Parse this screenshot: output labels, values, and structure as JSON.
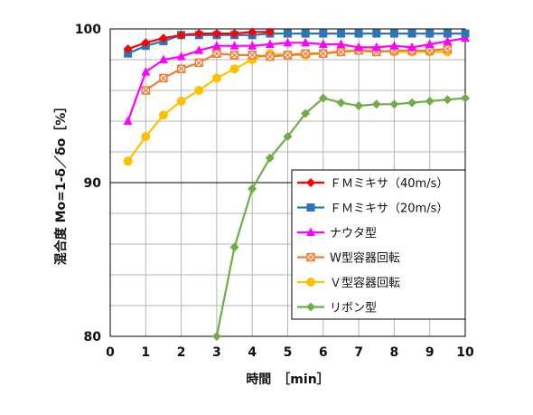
{
  "chart_data": {
    "type": "line",
    "title": "",
    "xlabel": "時間　［min］",
    "ylabel": "混合度 Mo=1-δ／δo［%］",
    "xlim": [
      0,
      10
    ],
    "ylim": [
      80,
      100
    ],
    "x_ticks": [
      "0",
      "1",
      "2",
      "3",
      "4",
      "5",
      "6",
      "7",
      "8",
      "9",
      "10"
    ],
    "y_ticks": [
      "80",
      "90",
      "100"
    ],
    "grid": true,
    "legend_position": "center-right",
    "series": [
      {
        "name": "ＦＭミキサ（40m/s）",
        "color": "#ff0000",
        "marker": "diamond",
        "x": [
          0.5,
          1,
          1.5,
          2,
          2.5,
          3,
          3.5,
          4,
          4.5
        ],
        "y": [
          98.7,
          99.1,
          99.4,
          99.6,
          99.7,
          99.7,
          99.7,
          99.8,
          99.8
        ]
      },
      {
        "name": "ＦＭミキサ（20m/s）",
        "color": "#2e75b6",
        "marker": "square",
        "x": [
          0.5,
          1,
          1.5,
          2,
          2.5,
          3,
          3.5,
          4,
          4.5,
          5,
          5.5,
          6,
          6.5,
          7,
          7.5,
          8,
          8.5,
          9,
          9.5,
          10
        ],
        "y": [
          98.4,
          98.9,
          99.2,
          99.6,
          99.6,
          99.6,
          99.6,
          99.6,
          99.7,
          99.7,
          99.7,
          99.7,
          99.7,
          99.7,
          99.7,
          99.7,
          99.7,
          99.7,
          99.7,
          99.7
        ]
      },
      {
        "name": "ナウタ型",
        "color": "#ff00ff",
        "marker": "triangle",
        "x": [
          0.5,
          1,
          1.5,
          2,
          2.5,
          3,
          3.5,
          4,
          4.5,
          5,
          5.5,
          6,
          6.5,
          7,
          7.5,
          8,
          8.5,
          9,
          9.5,
          10
        ],
        "y": [
          94.0,
          97.2,
          98.0,
          98.2,
          98.6,
          98.9,
          98.9,
          98.9,
          99.0,
          99.1,
          99.1,
          99.0,
          99.0,
          98.8,
          98.8,
          98.9,
          98.8,
          99.0,
          99.2,
          99.4
        ]
      },
      {
        "name": "W型容器回転",
        "color": "#ed7d31",
        "marker": "x-square",
        "x": [
          1,
          1.5,
          2,
          2.5,
          3,
          3.5,
          4,
          4.5,
          5,
          5.5,
          6,
          6.5,
          7,
          7.5,
          8,
          8.5,
          9,
          9.5
        ],
        "y": [
          96.0,
          96.8,
          97.4,
          97.8,
          98.4,
          98.3,
          98.3,
          98.2,
          98.3,
          98.4,
          98.4,
          98.5,
          98.6,
          98.5,
          98.6,
          98.6,
          98.6,
          98.7
        ]
      },
      {
        "name": "Ｖ型容器回転",
        "color": "#ffc000",
        "marker": "circle",
        "x": [
          0.5,
          1,
          1.5,
          2,
          2.5,
          3,
          3.5,
          4,
          4.5,
          5,
          5.5,
          6,
          6.5,
          7,
          7.5,
          8,
          8.5,
          9,
          9.5
        ],
        "y": [
          91.4,
          93.0,
          94.4,
          95.3,
          96.0,
          96.8,
          97.4,
          98.0,
          98.4,
          98.3,
          98.3,
          98.4,
          98.6,
          98.6,
          98.6,
          98.5,
          98.5,
          98.5,
          98.5
        ]
      },
      {
        "name": "リボン型",
        "color": "#70ad47",
        "marker": "diamond",
        "x": [
          3,
          3.5,
          4,
          4.5,
          5,
          5.5,
          6,
          6.5,
          7,
          7.5,
          8,
          8.5,
          9,
          9.5,
          10
        ],
        "y": [
          80.0,
          85.8,
          89.6,
          91.6,
          93.0,
          94.5,
          95.5,
          95.2,
          95.0,
          95.1,
          95.1,
          95.2,
          95.3,
          95.4,
          95.5
        ]
      }
    ]
  }
}
